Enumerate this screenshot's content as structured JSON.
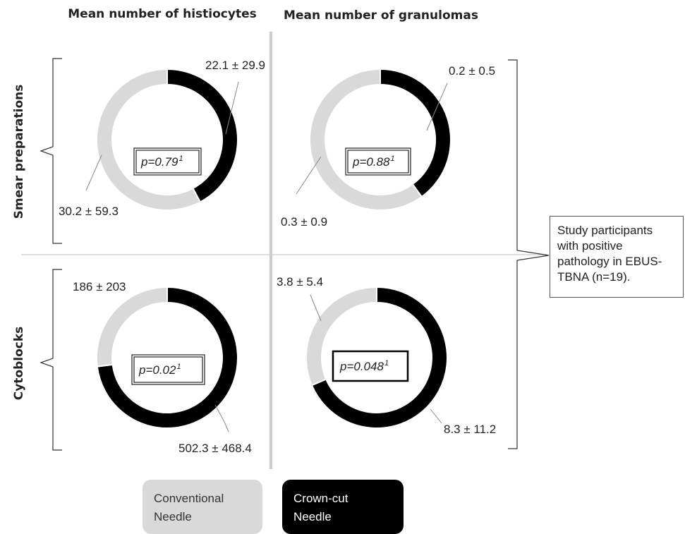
{
  "column_headers": [
    "Mean number of histiocytes",
    "Mean number of granulomas"
  ],
  "row_headers": [
    "Smear preparations",
    "Cytoblocks"
  ],
  "note": "Study participants with positive pathology in EBUS-TBNA (n=19).",
  "note_lines": [
    "Study participants",
    "with positive",
    "pathology in EBUS-",
    "TBNA (n=19)."
  ],
  "legend": {
    "conventional": "Conventional\nNeedle",
    "crowncut": "Crown-cut\nNeedle"
  },
  "colors": {
    "conventional": "#d9d9d9",
    "crowncut": "#000000",
    "divider": "#cccccc"
  },
  "chart_data": [
    {
      "type": "pie",
      "row": "Smear preparations",
      "column": "Mean number of histiocytes",
      "series": [
        {
          "name": "Crown-cut Needle",
          "value": 22.1,
          "label": "22.1 ± 29.9"
        },
        {
          "name": "Conventional Needle",
          "value": 30.2,
          "label": "30.2 ± 59.3"
        }
      ],
      "p_value": "p=0.79",
      "p_footnote": "1"
    },
    {
      "type": "pie",
      "row": "Smear preparations",
      "column": "Mean number of granulomas",
      "series": [
        {
          "name": "Crown-cut Needle",
          "value": 0.2,
          "label": "0.2 ± 0.5"
        },
        {
          "name": "Conventional Needle",
          "value": 0.3,
          "label": "0.3 ± 0.9"
        }
      ],
      "p_value": "p=0.88",
      "p_footnote": "1"
    },
    {
      "type": "pie",
      "row": "Cytoblocks",
      "column": "Mean number of histiocytes",
      "series": [
        {
          "name": "Crown-cut Needle",
          "value": 502.3,
          "label": "502.3 ± 468.4"
        },
        {
          "name": "Conventional Needle",
          "value": 186,
          "label": "186 ± 203"
        }
      ],
      "p_value": "p=0.02",
      "p_footnote": "1"
    },
    {
      "type": "pie",
      "row": "Cytoblocks",
      "column": "Mean number of granulomas",
      "series": [
        {
          "name": "Crown-cut Needle",
          "value": 8.3,
          "label": "8.3 ± 11.2"
        },
        {
          "name": "Conventional Needle",
          "value": 3.8,
          "label": "3.8 ± 5.4"
        }
      ],
      "p_value": "p=0.048",
      "p_footnote": "1"
    }
  ]
}
